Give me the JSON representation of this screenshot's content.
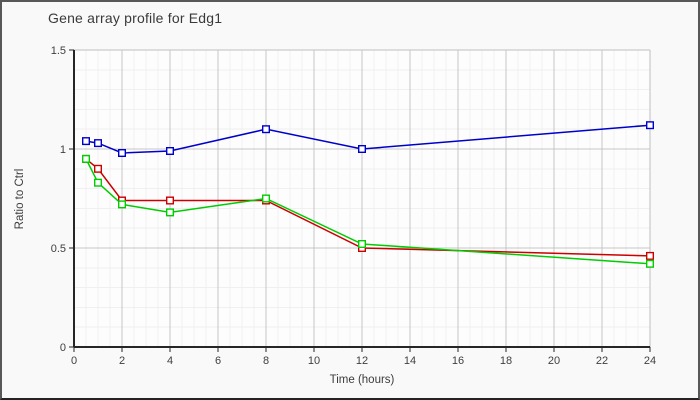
{
  "window": {
    "background": "#f9f9f9",
    "frame_color": "#585858"
  },
  "chart_data": {
    "type": "line",
    "title": "Gene array profile for Edg1",
    "xlabel": "Time (hours)",
    "ylabel": "Ratio to Ctrl",
    "xlim": [
      0,
      24
    ],
    "ylim": [
      0,
      1.5
    ],
    "x_ticks": [
      0,
      2,
      4,
      6,
      8,
      10,
      12,
      14,
      16,
      18,
      20,
      22,
      24
    ],
    "y_ticks": [
      0,
      0.5,
      1,
      1.5
    ],
    "y_tick_labels": [
      "0",
      "0.5",
      "1",
      "1.5"
    ],
    "grid": {
      "on": true,
      "minor_x_step": 0.5,
      "minor_y_step": 0.1,
      "major_x_step": 2,
      "major_y_step": 0.5,
      "minor_v_color": "#f4eeee",
      "minor_h_color": "#f0f0f0",
      "major_color": "#c6c6c6",
      "frame_color": "#c0c0c0"
    },
    "legend": "none",
    "marker": "open-square",
    "x": [
      0.5,
      1,
      2,
      4,
      8,
      12,
      24
    ],
    "series": [
      {
        "name": "blue-series",
        "color": "#0000cc",
        "values": [
          1.04,
          1.03,
          0.98,
          0.99,
          1.1,
          1.0,
          1.12
        ]
      },
      {
        "name": "red-series",
        "color": "#cc0000",
        "values": [
          0.95,
          0.9,
          0.74,
          0.74,
          0.74,
          0.5,
          0.46
        ]
      },
      {
        "name": "green-series",
        "color": "#00cc00",
        "values": [
          0.95,
          0.83,
          0.72,
          0.68,
          0.75,
          0.52,
          0.42
        ]
      }
    ]
  }
}
